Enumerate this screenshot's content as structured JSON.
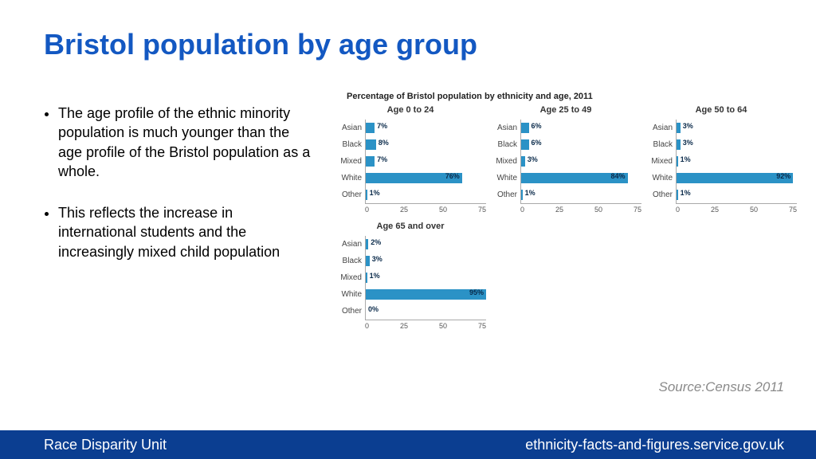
{
  "title": "Bristol population by age group",
  "title_color": "#1358c2",
  "bullets": [
    "The age profile of the ethnic minority population is much younger than the age profile of the Bristol population as a whole.",
    "This reflects the increase in international students and the increasingly mixed child population"
  ],
  "charts_main_title": "Percentage of Bristol population by ethnicity and age, 2011",
  "chart_style": {
    "bar_color": "#2b92c6",
    "categories": [
      "Asian",
      "Black",
      "Mixed",
      "White",
      "Other"
    ],
    "xlim": 95,
    "ticks": [
      "0",
      "25",
      "50",
      "75"
    ]
  },
  "panels": [
    {
      "title": "Age 0 to 24",
      "values": [
        7,
        8,
        7,
        76,
        1
      ]
    },
    {
      "title": "Age 25 to 49",
      "values": [
        6,
        6,
        3,
        84,
        1
      ]
    },
    {
      "title": "Age 50 to 64",
      "values": [
        3,
        3,
        1,
        92,
        1
      ]
    },
    {
      "title": "Age 65 and over",
      "values": [
        2,
        3,
        1,
        95,
        0
      ]
    }
  ],
  "source_text": "Source:Census 2011",
  "footer": {
    "bg_color": "#0b3e91",
    "left": "Race Disparity Unit",
    "right": "ethnicity-facts-and-figures.service.gov.uk"
  }
}
